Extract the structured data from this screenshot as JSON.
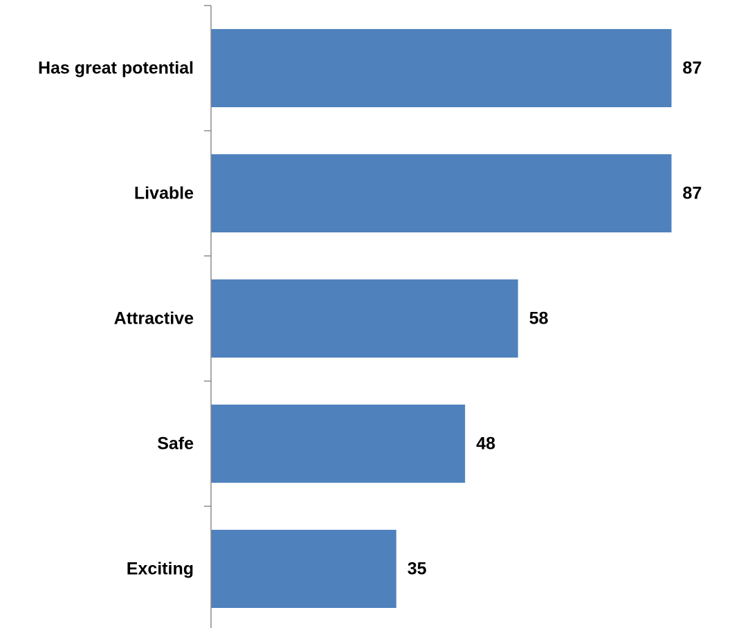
{
  "chart_data": {
    "type": "bar",
    "orientation": "horizontal",
    "categories": [
      "Has great potential",
      "Livable",
      "Attractive",
      "Safe",
      "Exciting"
    ],
    "values": [
      87,
      87,
      58,
      48,
      35
    ],
    "value_labels": [
      "87",
      "87",
      "58",
      "48",
      "35"
    ],
    "title": "",
    "xlabel": "",
    "ylabel": "",
    "xlim": [
      0,
      100
    ],
    "grid": false,
    "legend": "none",
    "bar_color": "#4f81bd"
  }
}
